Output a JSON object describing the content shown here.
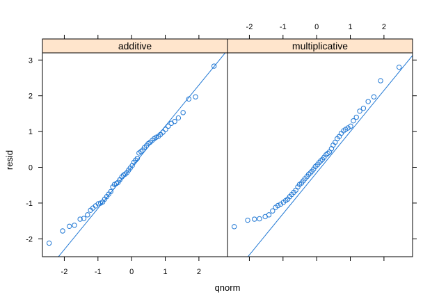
{
  "chart_data": {
    "type": "scatter",
    "subtype": "qq-plot",
    "xlabel": "qnorm",
    "ylabel": "resid",
    "xlim": [
      -2.65,
      2.85
    ],
    "ylim": [
      -2.5,
      3.2
    ],
    "x_ticks": [
      -2,
      -1,
      0,
      1,
      2
    ],
    "y_ticks": [
      -2,
      -1,
      0,
      1,
      2,
      3
    ],
    "x_tick_labels_bottom_panel": "additive",
    "x_tick_labels_top_panel": "multiplicative",
    "y_tick_labels_side": "left",
    "colors": {
      "points": "#1f77d4",
      "line": "#1f77d4",
      "strip": "#ffe5cc",
      "frame": "#000000"
    },
    "panels": [
      {
        "label": "additive",
        "reference_line": {
          "intercept": 0.0,
          "slope": 1.15
        },
        "x": [
          -2.45,
          -2.05,
          -1.85,
          -1.7,
          -1.53,
          -1.42,
          -1.31,
          -1.22,
          -1.15,
          -1.07,
          -0.99,
          -0.92,
          -0.86,
          -0.8,
          -0.74,
          -0.68,
          -0.62,
          -0.56,
          -0.51,
          -0.45,
          -0.4,
          -0.35,
          -0.29,
          -0.24,
          -0.19,
          -0.14,
          -0.09,
          -0.04,
          0.02,
          0.07,
          0.12,
          0.17,
          0.22,
          0.28,
          0.33,
          0.38,
          0.44,
          0.49,
          0.55,
          0.61,
          0.67,
          0.73,
          0.8,
          0.86,
          0.93,
          1.01,
          1.09,
          1.18,
          1.28,
          1.39,
          1.53,
          1.7,
          1.9,
          2.45
        ],
        "y": [
          -2.12,
          -1.78,
          -1.65,
          -1.62,
          -1.45,
          -1.43,
          -1.33,
          -1.2,
          -1.14,
          -1.08,
          -1.02,
          -1.0,
          -0.97,
          -0.89,
          -0.82,
          -0.75,
          -0.68,
          -0.55,
          -0.48,
          -0.45,
          -0.42,
          -0.35,
          -0.27,
          -0.22,
          -0.19,
          -0.15,
          -0.08,
          -0.02,
          0.05,
          0.14,
          0.2,
          0.25,
          0.4,
          0.44,
          0.48,
          0.55,
          0.6,
          0.66,
          0.7,
          0.75,
          0.8,
          0.84,
          0.87,
          0.92,
          0.98,
          1.06,
          1.15,
          1.23,
          1.28,
          1.38,
          1.53,
          1.91,
          1.97,
          2.83
        ]
      },
      {
        "label": "multiplicative",
        "reference_line": {
          "intercept": -0.15,
          "slope": 1.15
        },
        "x": [
          -2.45,
          -2.05,
          -1.85,
          -1.7,
          -1.53,
          -1.42,
          -1.31,
          -1.22,
          -1.15,
          -1.07,
          -0.99,
          -0.92,
          -0.86,
          -0.8,
          -0.74,
          -0.68,
          -0.62,
          -0.56,
          -0.51,
          -0.45,
          -0.4,
          -0.35,
          -0.29,
          -0.24,
          -0.19,
          -0.14,
          -0.09,
          -0.04,
          0.02,
          0.07,
          0.12,
          0.17,
          0.22,
          0.28,
          0.33,
          0.38,
          0.44,
          0.49,
          0.55,
          0.61,
          0.67,
          0.73,
          0.8,
          0.86,
          0.93,
          1.01,
          1.09,
          1.18,
          1.28,
          1.39,
          1.53,
          1.7,
          1.9,
          2.45
        ],
        "y": [
          -1.66,
          -1.48,
          -1.45,
          -1.44,
          -1.38,
          -1.33,
          -1.22,
          -1.12,
          -1.07,
          -1.03,
          -0.98,
          -0.93,
          -0.89,
          -0.82,
          -0.76,
          -0.7,
          -0.64,
          -0.55,
          -0.48,
          -0.44,
          -0.38,
          -0.32,
          -0.26,
          -0.2,
          -0.16,
          -0.11,
          -0.05,
          0.02,
          0.07,
          0.13,
          0.18,
          0.22,
          0.28,
          0.35,
          0.39,
          0.43,
          0.52,
          0.62,
          0.7,
          0.8,
          0.86,
          0.95,
          1.02,
          1.06,
          1.1,
          1.15,
          1.3,
          1.4,
          1.57,
          1.65,
          1.84,
          1.97,
          2.42,
          2.8
        ]
      }
    ]
  }
}
